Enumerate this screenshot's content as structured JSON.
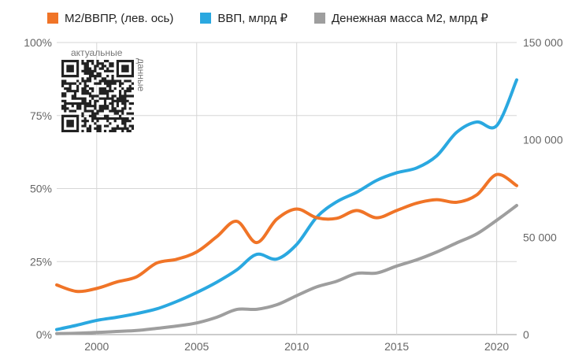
{
  "legend": {
    "items": [
      {
        "label": "M2/ВВПР, (лев. ось)",
        "color": "#f07427"
      },
      {
        "label": "ВВП, млрд ₽",
        "color": "#2aa8e0"
      },
      {
        "label": "Денежная масса М2, млрд ₽",
        "color": "#9e9e9e"
      }
    ]
  },
  "qr": {
    "top_label": "актуальные",
    "side_label": "данные"
  },
  "chart_data": {
    "type": "line",
    "x": [
      1998,
      1999,
      2000,
      2001,
      2002,
      2003,
      2004,
      2005,
      2006,
      2007,
      2008,
      2009,
      2010,
      2011,
      2012,
      2013,
      2014,
      2015,
      2016,
      2017,
      2018,
      2019,
      2020,
      2021
    ],
    "xlim": [
      1998,
      2021
    ],
    "x_ticks": [
      2000,
      2005,
      2010,
      2015,
      2020
    ],
    "y_left": {
      "ylim": [
        0,
        100
      ],
      "ticks": [
        0,
        25,
        50,
        75,
        100
      ],
      "tick_labels": [
        "0%",
        "25%",
        "50%",
        "75%",
        "100%"
      ]
    },
    "y_right": {
      "ylim": [
        0,
        150000
      ],
      "ticks": [
        0,
        50000,
        100000,
        150000
      ],
      "tick_labels": [
        "0",
        "50 000",
        "100 000",
        "150 000"
      ]
    },
    "grid": true,
    "legend_position": "top",
    "series": [
      {
        "name": "M2/ВВПР, (лев. ось)",
        "axis": "left",
        "color": "#f07427",
        "values": [
          17,
          14.8,
          15.8,
          18,
          19.8,
          24.5,
          25.8,
          28.3,
          33.5,
          38.8,
          31.5,
          39.5,
          43,
          40,
          39.8,
          42.5,
          40,
          42.5,
          45,
          46.2,
          45.3,
          47.8,
          54.8,
          51
        ]
      },
      {
        "name": "ВВП, млрд ₽",
        "axis": "right",
        "color": "#2aa8e0",
        "values": [
          2600,
          4800,
          7300,
          8900,
          10800,
          13200,
          17000,
          21600,
          26900,
          33200,
          41200,
          38800,
          46300,
          60300,
          68200,
          73100,
          79200,
          83100,
          85600,
          91800,
          103900,
          109200,
          107300,
          130800
        ]
      },
      {
        "name": "Денежная масса М2, млрд ₽",
        "axis": "right",
        "color": "#9e9e9e",
        "values": [
          500,
          700,
          1100,
          1600,
          2100,
          3200,
          4400,
          6000,
          8900,
          12900,
          13000,
          15300,
          20000,
          24500,
          27400,
          31400,
          31600,
          35200,
          38400,
          42400,
          47100,
          51700,
          58700,
          66300
        ]
      }
    ]
  }
}
